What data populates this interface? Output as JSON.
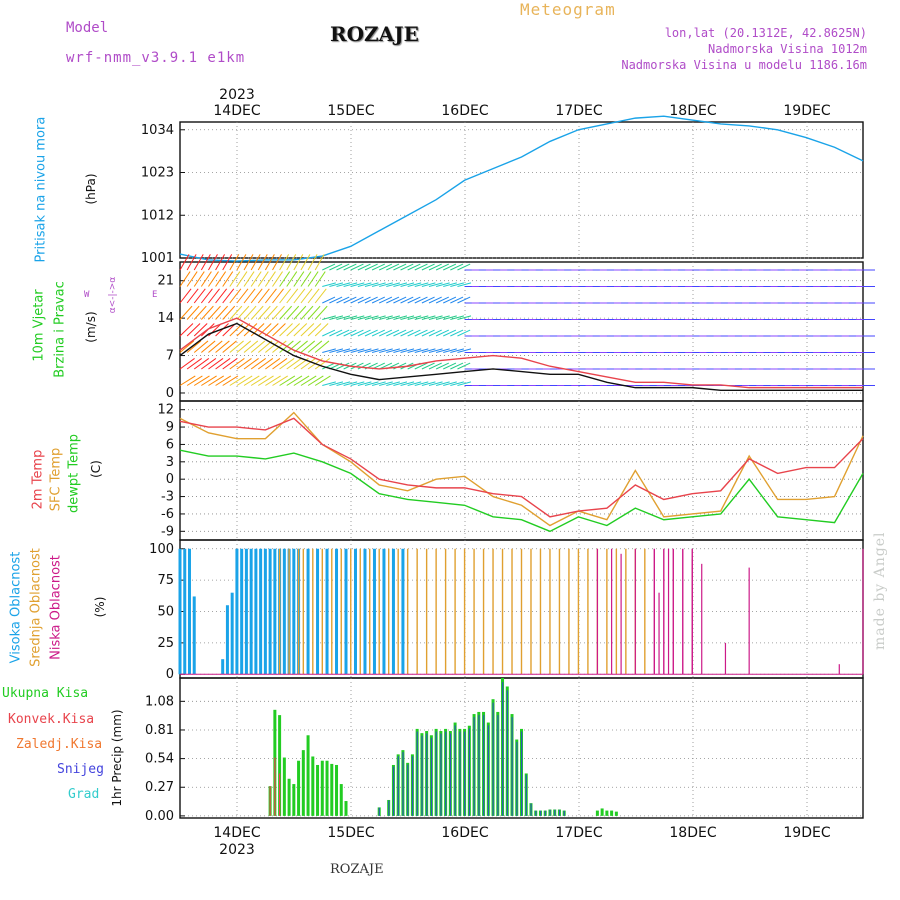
{
  "header": {
    "model_label": "Model",
    "model_value": "wrf-nmm_v3.9.1 e1km",
    "city": "ROZAJE",
    "meteogram_label": "Meteogram",
    "lonlat": "lon,lat (20.1312E, 42.8625N)",
    "altitude": "Nadmorska Visina 1012m",
    "model_altitude": "Nadmorska Visina u modelu 1186.16m"
  },
  "footer": {
    "city": "ROZAJE",
    "watermark": "made by Angel"
  },
  "axis": {
    "days": [
      "14DEC",
      "15DEC",
      "16DEC",
      "17DEC",
      "18DEC",
      "19DEC"
    ],
    "year": "2023"
  },
  "colors": {
    "pressure": "#1aa3e8",
    "temp2m": "#e8444c",
    "sfc_temp": "#e0a030",
    "dewpt": "#22cc22",
    "high_cloud": "#1aa3e8",
    "mid_cloud": "#e0a030",
    "low_cloud": "#cc1a88",
    "precip_total": "#22cc22",
    "precip_conv": "#e8444c",
    "precip_frozen": "#f07830",
    "snow": "#4444dd",
    "graupel": "#33cccc"
  },
  "chart_data": [
    {
      "type": "line",
      "panel": "pressure",
      "labels": {
        "series_name": "Pritisak na nivou mora",
        "unit": "(hPa)"
      },
      "yticks": [
        1001,
        1012,
        1023,
        1034
      ],
      "ylim": [
        1001,
        1036
      ],
      "grid": true,
      "x": [
        0,
        6,
        12,
        18,
        24,
        30,
        36,
        42,
        48,
        54,
        60,
        66,
        72,
        78,
        84,
        90,
        96,
        102,
        108,
        114,
        120,
        126,
        132,
        138,
        144
      ],
      "series": [
        {
          "values": [
            1002,
            1000.5,
            1000.2,
            1000.5,
            1000.5,
            1001.5,
            1004,
            1008,
            1012,
            1016,
            1021,
            1024,
            1027,
            1031,
            1034,
            1035.5,
            1037,
            1037.5,
            1036.5,
            1035.5,
            1035,
            1034,
            1032,
            1029.5,
            1026
          ]
        }
      ]
    },
    {
      "type": "line",
      "panel": "wind",
      "labels": {
        "series_name": "10m Vjetar",
        "series_name2": "Brzina i Pravac",
        "unit": "(m/s)",
        "compass_w": "W",
        "compass_e": "E",
        "compass_arrows": "α<-|->α"
      },
      "yticks": [
        0,
        7,
        14,
        21
      ],
      "ylim": [
        -1.5,
        24.5
      ],
      "grid": true,
      "x": [
        0,
        6,
        12,
        18,
        24,
        30,
        36,
        42,
        48,
        54,
        60,
        66,
        72,
        78,
        84,
        90,
        96,
        102,
        108,
        114,
        120,
        126,
        132,
        138,
        144
      ],
      "series": [
        {
          "name": "speed",
          "values": [
            7,
            11,
            13,
            10,
            7,
            5,
            3.5,
            2.5,
            3,
            3.5,
            4,
            4.5,
            4,
            3.5,
            3.5,
            2,
            1,
            1,
            1,
            0.5,
            0.5,
            0.5,
            0.5,
            0.5,
            0.5
          ]
        },
        {
          "name": "gust",
          "values": [
            8,
            12,
            14,
            11,
            8,
            6,
            5,
            4.5,
            5,
            6,
            6.5,
            7,
            6.5,
            5,
            4,
            3,
            2,
            2,
            1.5,
            1.5,
            1,
            1,
            1,
            1,
            1
          ]
        }
      ]
    },
    {
      "type": "line",
      "panel": "temperature",
      "labels": {
        "series_a": "2m Temp",
        "series_b": "SFC Temp",
        "series_c": "dewpt Temp",
        "unit": "(C)"
      },
      "yticks": [
        -9,
        -6,
        -3,
        0,
        3,
        6,
        9,
        12
      ],
      "ylim": [
        -10.5,
        13.5
      ],
      "grid": true,
      "x": [
        0,
        6,
        12,
        18,
        24,
        30,
        36,
        42,
        48,
        54,
        60,
        66,
        72,
        78,
        84,
        90,
        96,
        102,
        108,
        114,
        120,
        126,
        132,
        138,
        144
      ],
      "series": [
        {
          "name": "2m Temp",
          "values": [
            10,
            9,
            9,
            8.5,
            10.5,
            6,
            3.5,
            0,
            -1,
            -1.5,
            -1.5,
            -2.5,
            -3,
            -6.5,
            -5.5,
            -5,
            -1,
            -3.5,
            -2.5,
            -2,
            3.5,
            1,
            2,
            2,
            7
          ]
        },
        {
          "name": "SFC Temp",
          "values": [
            10.5,
            8,
            7,
            7,
            11.5,
            6,
            3,
            -1,
            -2,
            0,
            0.5,
            -3,
            -4.5,
            -8,
            -5.5,
            -7,
            1.5,
            -6.5,
            -6,
            -5.5,
            4,
            -3.5,
            -3.5,
            -3,
            7.5
          ]
        },
        {
          "name": "dewpt Temp",
          "values": [
            5,
            4,
            4,
            3.5,
            4.5,
            3,
            1,
            -2.5,
            -3.5,
            -4,
            -4.5,
            -6.5,
            -7,
            -9,
            -6.5,
            -8,
            -5,
            -7,
            -6.5,
            -6,
            0,
            -6.5,
            -7,
            -7.5,
            1
          ]
        }
      ]
    },
    {
      "type": "bar",
      "panel": "cloud",
      "labels": {
        "series_a": "Visoka Oblacnost",
        "series_b": "Srednja Oblacnost",
        "series_c": "Niska Oblacnost",
        "unit": "(%)"
      },
      "yticks": [
        0,
        25,
        50,
        75,
        100
      ],
      "ylim": [
        -3,
        107
      ],
      "grid": true,
      "series": [
        {
          "name": "Visoka Oblacnost",
          "x": [
            0,
            1,
            2,
            3,
            9,
            10,
            11,
            12,
            13,
            14,
            15,
            16,
            17,
            18,
            19,
            20,
            21,
            22,
            23,
            24,
            25,
            27,
            29,
            31,
            33,
            35,
            37,
            39,
            41,
            43,
            45,
            47
          ],
          "values": [
            100,
            100,
            100,
            62,
            12,
            55,
            65,
            100,
            100,
            100,
            100,
            100,
            100,
            100,
            100,
            100,
            100,
            100,
            100,
            100,
            100,
            100,
            100,
            100,
            100,
            100,
            100,
            100,
            100,
            100,
            100,
            100
          ]
        },
        {
          "name": "Srednja Oblacnost",
          "x": [
            21,
            23,
            25,
            26,
            28,
            30,
            32,
            34,
            36,
            38,
            40,
            42,
            44,
            46,
            48,
            50,
            52,
            54,
            56,
            58,
            60,
            62,
            64,
            66,
            68,
            70,
            72,
            74,
            76,
            78,
            80,
            82,
            84,
            86,
            88,
            90,
            92,
            94,
            96,
            98
          ],
          "values": [
            100,
            100,
            100,
            100,
            100,
            100,
            100,
            100,
            100,
            100,
            100,
            100,
            100,
            100,
            100,
            100,
            100,
            100,
            100,
            100,
            100,
            100,
            100,
            100,
            100,
            100,
            100,
            100,
            100,
            100,
            100,
            100,
            100,
            100,
            100,
            100,
            100,
            100,
            100,
            100
          ]
        },
        {
          "name": "Niska Oblacnost",
          "x": [
            100,
            102,
            104,
            106,
            108,
            112,
            114,
            116,
            126,
            140
          ],
          "values": [
            100,
            100,
            100,
            100,
            100,
            0,
            0,
            0,
            0,
            0
          ]
        },
        {
          "name": "Niska Oblacnost 2",
          "x": [
            88,
            91,
            93,
            96,
            101,
            103,
            108,
            110,
            115,
            120,
            139,
            144
          ],
          "values": [
            100,
            100,
            96,
            100,
            65,
            100,
            92,
            88,
            25,
            85,
            8,
            100
          ]
        }
      ]
    },
    {
      "type": "bar",
      "panel": "precip",
      "labels": {
        "series_a": "Ukupna Kisa",
        "series_b": "Konvek.Kisa",
        "series_c": "Zaledj.Kisa",
        "series_d": "Snijeg",
        "series_e": "Grad",
        "unit": "1hr Precip (mm)"
      },
      "yticks": [
        0,
        0.27,
        0.54,
        0.81,
        1.08
      ],
      "ylim": [
        -0.02,
        1.3
      ],
      "grid": true,
      "series": [
        {
          "name": "Ukupna Kisa",
          "x": [
            19,
            20,
            21,
            22,
            23,
            24,
            25,
            26,
            27,
            28,
            29,
            30,
            31,
            32,
            33,
            34,
            35
          ],
          "values": [
            0.28,
            1.0,
            0.95,
            0.55,
            0.35,
            0.3,
            0.52,
            0.62,
            0.76,
            0.56,
            0.48,
            0.52,
            0.52,
            0.49,
            0.48,
            0.3,
            0.14
          ]
        },
        {
          "name": "Snijeg",
          "x": [
            42,
            44,
            45,
            46,
            47,
            48,
            49,
            50,
            51,
            52,
            53,
            54,
            55,
            56,
            57,
            58,
            59,
            60,
            61,
            62,
            63,
            64,
            65,
            66,
            67,
            68,
            69,
            70,
            71,
            72,
            73,
            74,
            75,
            76,
            77,
            78,
            79,
            80,
            81
          ],
          "values": [
            0.08,
            0.15,
            0.48,
            0.58,
            0.62,
            0.5,
            0.58,
            0.82,
            0.78,
            0.8,
            0.76,
            0.82,
            0.8,
            0.82,
            0.8,
            0.88,
            0.82,
            0.82,
            0.85,
            0.96,
            0.98,
            0.98,
            0.88,
            1.1,
            0.98,
            1.3,
            1.22,
            0.96,
            0.72,
            0.82,
            0.4,
            0.12,
            0.05,
            0.05,
            0.05,
            0.06,
            0.06,
            0.06,
            0.05
          ]
        },
        {
          "name": "Grad",
          "x": [
            88,
            89,
            90,
            91,
            92
          ],
          "values": [
            0.05,
            0.07,
            0.05,
            0.05,
            0.04
          ]
        }
      ]
    }
  ]
}
